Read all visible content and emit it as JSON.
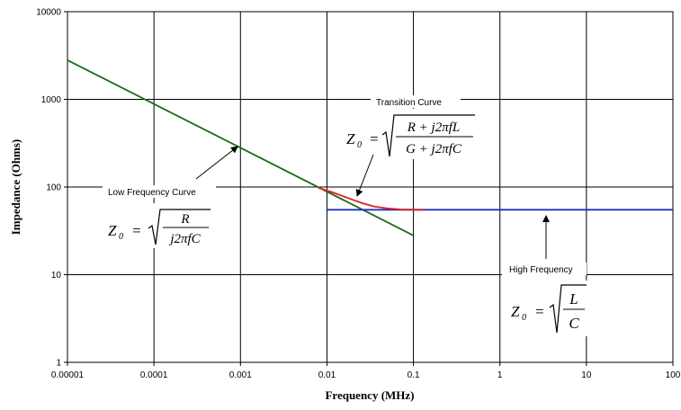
{
  "chart_data": {
    "type": "line",
    "xlabel": "Frequency (MHz)",
    "ylabel": "Impedance (Ohms)",
    "x_scale": "log",
    "y_scale": "log",
    "xlim": [
      1e-05,
      100
    ],
    "ylim": [
      1,
      10000
    ],
    "grid": true,
    "x_ticks": [
      "0.00001",
      "0.0001",
      "0.001",
      "0.01",
      "0.1",
      "1",
      "10",
      "100"
    ],
    "y_ticks": [
      "1",
      "10",
      "100",
      "1000",
      "10000"
    ],
    "series": [
      {
        "color": "#1a6b1a",
        "x": [
          1e-05,
          0.1
        ],
        "y": [
          2800,
          28
        ]
      },
      {
        "color": "#e02020",
        "x": [
          0.008,
          0.012,
          0.018,
          0.025,
          0.035,
          0.05,
          0.07,
          0.1,
          0.13
        ],
        "y": [
          98,
          86,
          74,
          66,
          60,
          57,
          55.6,
          55.2,
          55
        ]
      },
      {
        "color": "#2030c0",
        "x": [
          0.01,
          100
        ],
        "y": [
          55,
          55
        ]
      }
    ],
    "annotations": [
      {
        "label": "Low Frequency Curve",
        "equation": {
          "lhs": "Z",
          "sub": "0",
          "numerator": "R",
          "denominator": "j2πfC"
        }
      },
      {
        "label": "Transition Curve",
        "equation": {
          "lhs": "Z",
          "sub": "0",
          "numerator": "R + j2πfL",
          "denominator": "G + j2πfC"
        }
      },
      {
        "label": "High Frequency",
        "equation": {
          "lhs": "Z",
          "sub": "0",
          "numerator": "L",
          "denominator": "C"
        }
      }
    ]
  }
}
